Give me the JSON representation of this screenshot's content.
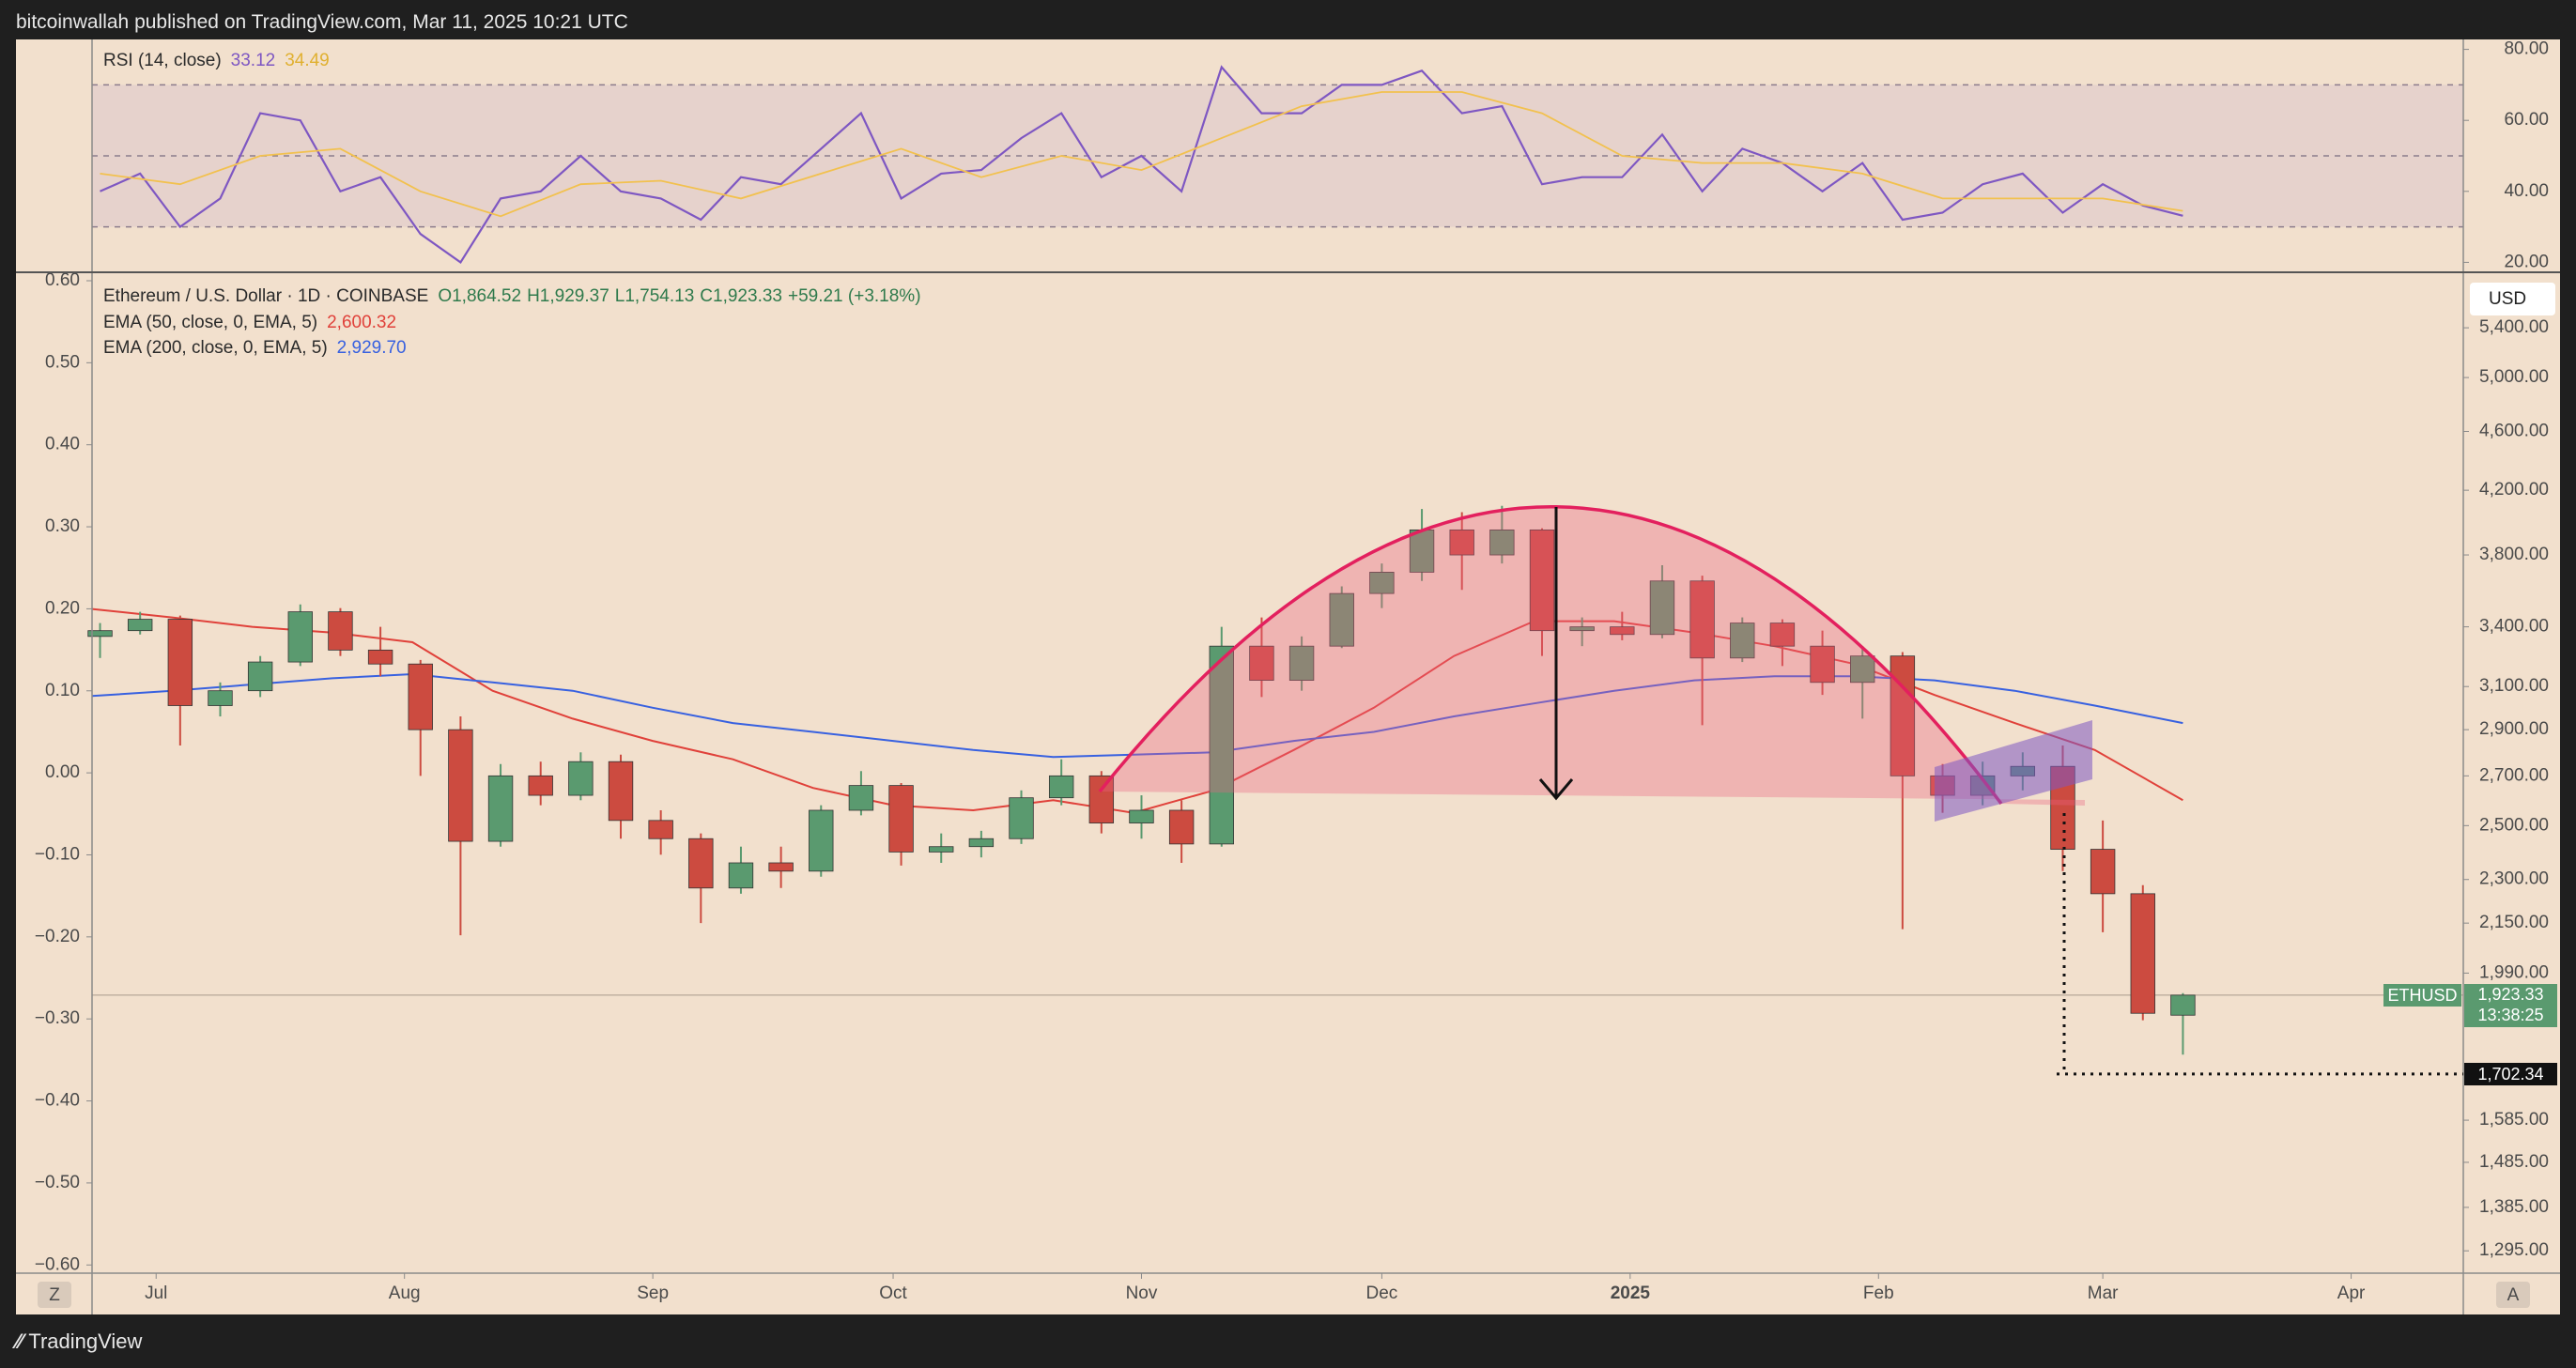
{
  "page": {
    "header": "bitcoinwallah published on TradingView.com, Mar 11, 2025 10:21 UTC",
    "brand": "TradingView",
    "left_button": "Z",
    "right_button": "A",
    "currency": "USD"
  },
  "chart_data": [
    {
      "type": "line",
      "title": "RSI (14, close)",
      "ylim": [
        17.2,
        82.8
      ],
      "yticks": [
        {
          "value": 80,
          "label": "80.00"
        },
        {
          "value": 60,
          "label": "60.00"
        },
        {
          "value": 40,
          "label": "40.00"
        },
        {
          "value": 20,
          "label": "20.00"
        }
      ],
      "levels": [
        70,
        50,
        30
      ],
      "band_color": "#7e57c2",
      "series": [
        {
          "color": "#7e57c2",
          "last_label": "33.12",
          "x": [
            1,
            6,
            11,
            16,
            21,
            26,
            31,
            36,
            41,
            46,
            51,
            56,
            61,
            66,
            71,
            76,
            81,
            86,
            91,
            96,
            101,
            106,
            111,
            116,
            121,
            126,
            131,
            136,
            141,
            146,
            151,
            156,
            161,
            166,
            171,
            176,
            181,
            186,
            191,
            196,
            201,
            206,
            211,
            216,
            221,
            226,
            231,
            236,
            241,
            246,
            251,
            256,
            261
          ],
          "values": [
            40,
            45,
            30,
            38,
            62,
            60,
            40,
            44,
            28,
            20,
            38,
            40,
            50,
            40,
            38,
            32,
            44,
            42,
            52,
            62,
            38,
            45,
            46,
            55,
            62,
            44,
            50,
            40,
            75,
            62,
            62,
            70,
            70,
            74,
            62,
            64,
            42,
            44,
            44,
            56,
            40,
            52,
            48,
            40,
            48,
            32,
            34,
            42,
            45,
            34,
            42,
            36,
            33.12
          ]
        },
        {
          "color": "#f2c14e",
          "last_label": "34.49",
          "x": [
            1,
            11,
            21,
            31,
            41,
            51,
            61,
            71,
            81,
            91,
            101,
            111,
            121,
            131,
            141,
            151,
            161,
            171,
            181,
            191,
            201,
            211,
            221,
            231,
            241,
            251,
            261
          ],
          "values": [
            45,
            42,
            50,
            52,
            40,
            33,
            42,
            43,
            38,
            45,
            52,
            44,
            50,
            46,
            55,
            64,
            68,
            68,
            62,
            50,
            48,
            48,
            45,
            38,
            38,
            38,
            34.49
          ]
        }
      ]
    },
    {
      "type": "candlestick",
      "title": "Ethereum / U.S. Dollar · 1D · COINBASE",
      "ohlc_text": [
        "O1,864.52",
        "H1,929.37",
        "L1,754.13",
        "C1,923.33",
        "+59.21 (+3.18%)"
      ],
      "up_color": "#5a9a6f",
      "down_color": "#cc4b40",
      "log_scale": true,
      "xlim": [
        0,
        296
      ],
      "xticks": [
        {
          "value": 8,
          "label": "Jul"
        },
        {
          "value": 39,
          "label": "Aug"
        },
        {
          "value": 70,
          "label": "Sep"
        },
        {
          "value": 100,
          "label": "Oct"
        },
        {
          "value": 131,
          "label": "Nov"
        },
        {
          "value": 161,
          "label": "Dec"
        },
        {
          "value": 192,
          "label": "2025"
        },
        {
          "value": 223,
          "label": "Feb"
        },
        {
          "value": 251,
          "label": "Mar"
        },
        {
          "value": 282,
          "label": "Apr"
        }
      ],
      "ylim": [
        1251,
        5867
      ],
      "yticks": [
        {
          "value": 5400,
          "label": "5,400.00"
        },
        {
          "value": 5000,
          "label": "5,000.00"
        },
        {
          "value": 4600,
          "label": "4,600.00"
        },
        {
          "value": 4200,
          "label": "4,200.00"
        },
        {
          "value": 3800,
          "label": "3,800.00"
        },
        {
          "value": 3400,
          "label": "3,400.00"
        },
        {
          "value": 3100,
          "label": "3,100.00"
        },
        {
          "value": 2900,
          "label": "2,900.00"
        },
        {
          "value": 2700,
          "label": "2,700.00"
        },
        {
          "value": 2500,
          "label": "2,500.00"
        },
        {
          "value": 2300,
          "label": "2,300.00"
        },
        {
          "value": 2150,
          "label": "2,150.00"
        },
        {
          "value": 1990,
          "label": "1,990.00"
        },
        {
          "value": 1585,
          "label": "1,585.00"
        },
        {
          "value": 1485,
          "label": "1,485.00"
        },
        {
          "value": 1385,
          "label": "1,385.00"
        },
        {
          "value": 1295,
          "label": "1,295.00"
        }
      ],
      "y2lim": [
        -0.61,
        0.608
      ],
      "y2ticks": [
        {
          "value": 0.6,
          "label": "0.60"
        },
        {
          "value": 0.5,
          "label": "0.50"
        },
        {
          "value": 0.4,
          "label": "0.40"
        },
        {
          "value": 0.3,
          "label": "0.30"
        },
        {
          "value": 0.2,
          "label": "0.20"
        },
        {
          "value": 0.1,
          "label": "0.10"
        },
        {
          "value": 0,
          "label": "0.00"
        },
        {
          "value": -0.1,
          "label": "−0.10"
        },
        {
          "value": -0.2,
          "label": "−0.20"
        },
        {
          "value": -0.3,
          "label": "−0.30"
        },
        {
          "value": -0.4,
          "label": "−0.40"
        },
        {
          "value": -0.5,
          "label": "−0.50"
        },
        {
          "value": -0.6,
          "label": "−0.60"
        }
      ],
      "x": [
        1,
        6,
        11,
        16,
        21,
        26,
        31,
        36,
        41,
        46,
        51,
        56,
        61,
        66,
        71,
        76,
        81,
        86,
        91,
        96,
        101,
        106,
        111,
        116,
        121,
        126,
        131,
        136,
        141,
        146,
        151,
        156,
        161,
        166,
        171,
        176,
        181,
        186,
        191,
        196,
        201,
        206,
        211,
        216,
        221,
        226,
        231,
        236,
        241,
        246,
        251,
        256,
        261
      ],
      "open": [
        3350,
        3380,
        3440,
        3010,
        3080,
        3220,
        3480,
        3280,
        3210,
        2900,
        2440,
        2700,
        2620,
        2760,
        2520,
        2450,
        2270,
        2360,
        2330,
        2560,
        2660,
        2400,
        2420,
        2450,
        2610,
        2700,
        2510,
        2560,
        2430,
        3300,
        3130,
        3300,
        3580,
        3700,
        3950,
        3800,
        3950,
        3380,
        3400,
        3360,
        3650,
        3240,
        3420,
        3300,
        3120,
        3250,
        2700,
        2620,
        2700,
        2740,
        2410,
        2250,
        1864.52
      ],
      "high": [
        3420,
        3480,
        3460,
        3120,
        3250,
        3520,
        3500,
        3400,
        3230,
        2960,
        2750,
        2760,
        2800,
        2790,
        2560,
        2470,
        2420,
        2420,
        2580,
        2720,
        2670,
        2470,
        2480,
        2640,
        2770,
        2720,
        2620,
        2600,
        3400,
        3450,
        3350,
        3620,
        3750,
        4080,
        4060,
        4100,
        3960,
        3450,
        3480,
        3740,
        3680,
        3450,
        3440,
        3380,
        3300,
        3270,
        2750,
        2760,
        2800,
        2830,
        2520,
        2280,
        1929.37
      ],
      "low": [
        3240,
        3360,
        2830,
        2960,
        3050,
        3200,
        3250,
        3150,
        2700,
        2110,
        2420,
        2580,
        2600,
        2450,
        2390,
        2150,
        2250,
        2270,
        2310,
        2540,
        2350,
        2360,
        2380,
        2430,
        2580,
        2470,
        2450,
        2360,
        2420,
        3050,
        3080,
        3290,
        3500,
        3650,
        3600,
        3750,
        3250,
        3300,
        3330,
        3340,
        2920,
        3220,
        3200,
        3060,
        2950,
        2130,
        2550,
        2580,
        2640,
        2330,
        2120,
        1850,
        1754.13
      ],
      "close": [
        3380,
        3440,
        3010,
        3080,
        3220,
        3480,
        3280,
        3210,
        2900,
        2440,
        2700,
        2620,
        2760,
        2520,
        2450,
        2270,
        2360,
        2330,
        2560,
        2660,
        2400,
        2420,
        2450,
        2610,
        2700,
        2510,
        2560,
        2430,
        3300,
        3130,
        3300,
        3580,
        3700,
        3950,
        3800,
        3950,
        3380,
        3400,
        3360,
        3650,
        3240,
        3420,
        3300,
        3120,
        3250,
        2700,
        2620,
        2700,
        2740,
        2410,
        2250,
        1870,
        1923.33
      ],
      "series": [
        {
          "name": "EMA (50, close, 0, EMA, 5)",
          "color": "#e0413a",
          "last_label": "2,600.32",
          "x": [
            0,
            10,
            20,
            30,
            40,
            50,
            60,
            70,
            80,
            90,
            100,
            110,
            120,
            130,
            140,
            150,
            160,
            170,
            180,
            190,
            200,
            210,
            220,
            230,
            240,
            250,
            261
          ],
          "values": [
            3495,
            3450,
            3400,
            3370,
            3320,
            3080,
            2950,
            2850,
            2770,
            2650,
            2580,
            2560,
            2600,
            2550,
            2640,
            2810,
            3000,
            3250,
            3430,
            3430,
            3370,
            3300,
            3210,
            3060,
            2930,
            2810,
            2600.32
          ]
        },
        {
          "name": "EMA (200, close, 0, EMA, 5)",
          "color": "#3861e0",
          "last_label": "2,929.70",
          "x": [
            0,
            10,
            20,
            30,
            40,
            50,
            60,
            70,
            80,
            90,
            100,
            110,
            120,
            130,
            140,
            150,
            160,
            170,
            180,
            190,
            200,
            210,
            220,
            230,
            240,
            250,
            261
          ],
          "values": [
            3055,
            3080,
            3110,
            3140,
            3160,
            3120,
            3080,
            3000,
            2930,
            2890,
            2850,
            2810,
            2780,
            2790,
            2800,
            2850,
            2890,
            2960,
            3020,
            3080,
            3130,
            3150,
            3150,
            3130,
            3080,
            3010,
            2929.7
          ]
        }
      ],
      "annotations": {
        "symbol": "ETHUSD",
        "last_price_label": "1,923.33",
        "countdown": "13:38:25",
        "target": 1702.34,
        "target_label": "1,702.34"
      }
    }
  ]
}
